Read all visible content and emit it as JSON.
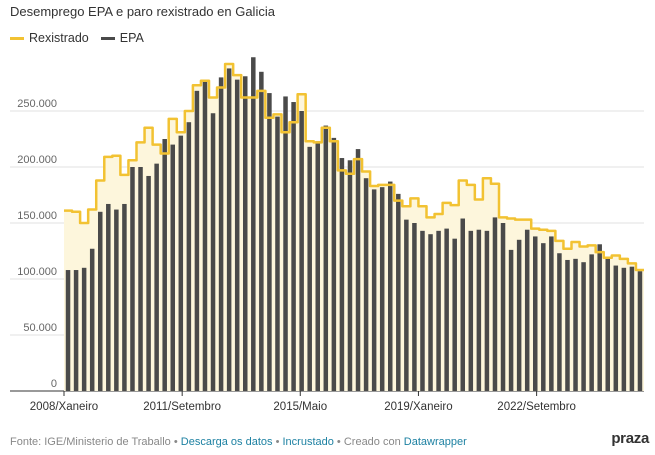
{
  "title": "Desemprego EPA e paro rexistrado en Galicia",
  "footer": {
    "source": "Fonte: IGE/Ministerio de Traballo",
    "sep": "•",
    "download": "Descarga os datos",
    "embed": "Incrustado",
    "created": "Creado con",
    "tool": "Datawrapper"
  },
  "logo": "praza",
  "colors": {
    "line": "#f2c232",
    "area": "#fdf6dc",
    "bar": "#4a4a4a"
  },
  "chart_data": {
    "type": "bar",
    "ylim": [
      0,
      300000
    ],
    "yticks": [
      0,
      50000,
      100000,
      150000,
      200000,
      250000
    ],
    "ytick_labels": [
      "0",
      "50.000",
      "100.000",
      "150.000",
      "200.000",
      "250.000"
    ],
    "xlabels": [
      {
        "label": "2008/Xaneiro",
        "index": 0
      },
      {
        "label": "2011/Setembro",
        "index": 14.67
      },
      {
        "label": "2015/Maio",
        "index": 29.33
      },
      {
        "label": "2019/Xaneiro",
        "index": 44
      },
      {
        "label": "2022/Setembro",
        "index": 58.67
      }
    ],
    "series": [
      {
        "name": "EPA",
        "kind": "bar",
        "values": [
          108000,
          108000,
          110000,
          127000,
          160000,
          167000,
          162000,
          167000,
          200000,
          200000,
          192000,
          203000,
          225000,
          220000,
          228000,
          240000,
          268000,
          277000,
          248000,
          280000,
          288000,
          278000,
          281000,
          298000,
          285000,
          266000,
          245000,
          263000,
          258000,
          250000,
          218000,
          223000,
          237000,
          226000,
          208000,
          206000,
          216000,
          190000,
          180000,
          182000,
          187000,
          176000,
          153000,
          150000,
          143000,
          140000,
          143000,
          145000,
          136000,
          154000,
          143000,
          144000,
          143000,
          155000,
          150000,
          126000,
          135000,
          144000,
          138000,
          132000,
          138000,
          123000,
          117000,
          118000,
          115000,
          122000,
          131000,
          118000,
          112000,
          110000,
          111000,
          107000
        ]
      },
      {
        "name": "Rexistrado",
        "kind": "line",
        "values": [
          161000,
          160000,
          150000,
          162000,
          188000,
          209000,
          210000,
          193000,
          206000,
          222000,
          235000,
          220000,
          212000,
          243000,
          231000,
          250000,
          273000,
          277000,
          262000,
          271000,
          292000,
          282000,
          262000,
          262000,
          268000,
          244000,
          247000,
          231000,
          240000,
          265000,
          223000,
          222000,
          235000,
          223000,
          197000,
          194000,
          207000,
          196000,
          183000,
          184000,
          184000,
          170000,
          165000,
          172000,
          165000,
          155000,
          158000,
          168000,
          166000,
          188000,
          184000,
          171000,
          190000,
          185000,
          155000,
          154000,
          153000,
          153000,
          145000,
          144000,
          143000,
          134000,
          127000,
          133000,
          129000,
          130000,
          124000,
          119000,
          121000,
          118000,
          114000,
          108000
        ]
      }
    ]
  }
}
